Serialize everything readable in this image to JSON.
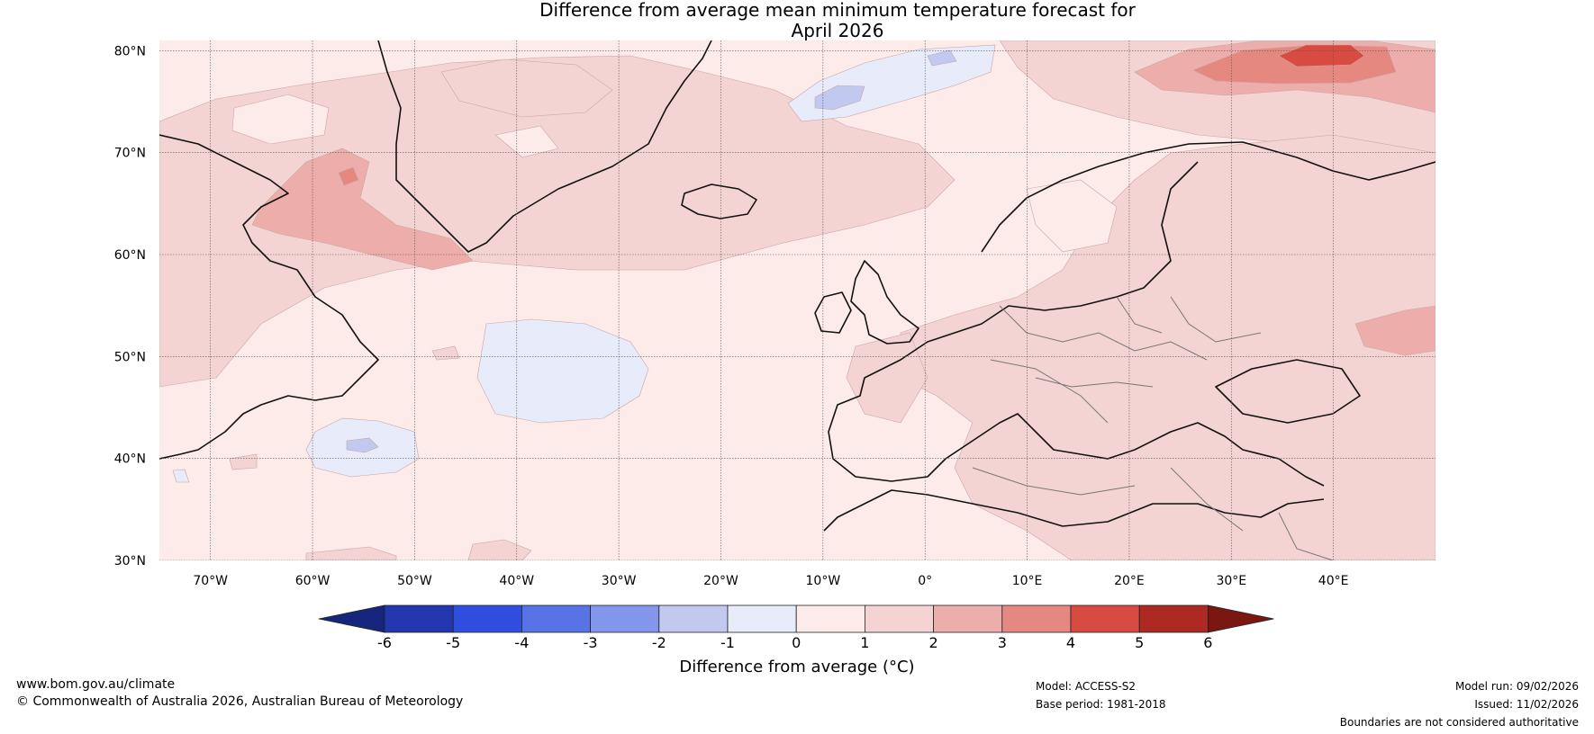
{
  "title": {
    "line1": "Difference from average mean minimum temperature forecast for",
    "line2": "April 2026"
  },
  "map": {
    "lon_range": [
      -75,
      50
    ],
    "lat_range": [
      30,
      81
    ],
    "lat_ticks": [
      {
        "value": 80,
        "label": "80°N"
      },
      {
        "value": 70,
        "label": "70°N"
      },
      {
        "value": 60,
        "label": "60°N"
      },
      {
        "value": 50,
        "label": "50°N"
      },
      {
        "value": 40,
        "label": "40°N"
      },
      {
        "value": 30,
        "label": "30°N"
      }
    ],
    "lon_ticks": [
      {
        "value": -70,
        "label": "70°W"
      },
      {
        "value": -60,
        "label": "60°W"
      },
      {
        "value": -50,
        "label": "50°W"
      },
      {
        "value": -40,
        "label": "40°W"
      },
      {
        "value": -30,
        "label": "30°W"
      },
      {
        "value": -20,
        "label": "20°W"
      },
      {
        "value": -10,
        "label": "10°W"
      },
      {
        "value": 0,
        "label": "0°"
      },
      {
        "value": 10,
        "label": "10°E"
      },
      {
        "value": 20,
        "label": "20°E"
      },
      {
        "value": 30,
        "label": "30°E"
      },
      {
        "value": 40,
        "label": "40°E"
      }
    ],
    "background_color": "#fcebe9",
    "colors": {
      "band_0_1": "#fcebe9",
      "band_1_2": "#f4d4d2",
      "band_2_3": "#edadaa",
      "band_3_4": "#e58880",
      "band_4_5": "#d84b40",
      "band_m1_0": "#e7ebfa",
      "band_m2_m1": "#c1c9f0"
    }
  },
  "colorbar": {
    "label": "Difference from average (°C)",
    "ticks": [
      "-6",
      "-5",
      "-4",
      "-3",
      "-2",
      "-1",
      "0",
      "1",
      "2",
      "3",
      "4",
      "5",
      "6"
    ],
    "low_extend_color": "#16267c",
    "high_extend_color": "#7a1712",
    "colors": [
      "#2338b0",
      "#2f4ee0",
      "#5873e6",
      "#8396ec",
      "#c1c9f0",
      "#e7ebfa",
      "#fcebe9",
      "#f4d4d2",
      "#edadaa",
      "#e58880",
      "#d84b40",
      "#ac2a22"
    ]
  },
  "footer": {
    "website": "www.bom.gov.au/climate",
    "copyright": "© Commonwealth of Australia 2026, Australian Bureau of Meteorology",
    "model": "Model: ACCESS-S2",
    "base_period": "Base period: 1981-2018",
    "model_run": "Model run: 09/02/2026",
    "issued": "Issued: 11/02/2026",
    "disclaimer": "Boundaries are not considered authoritative"
  }
}
